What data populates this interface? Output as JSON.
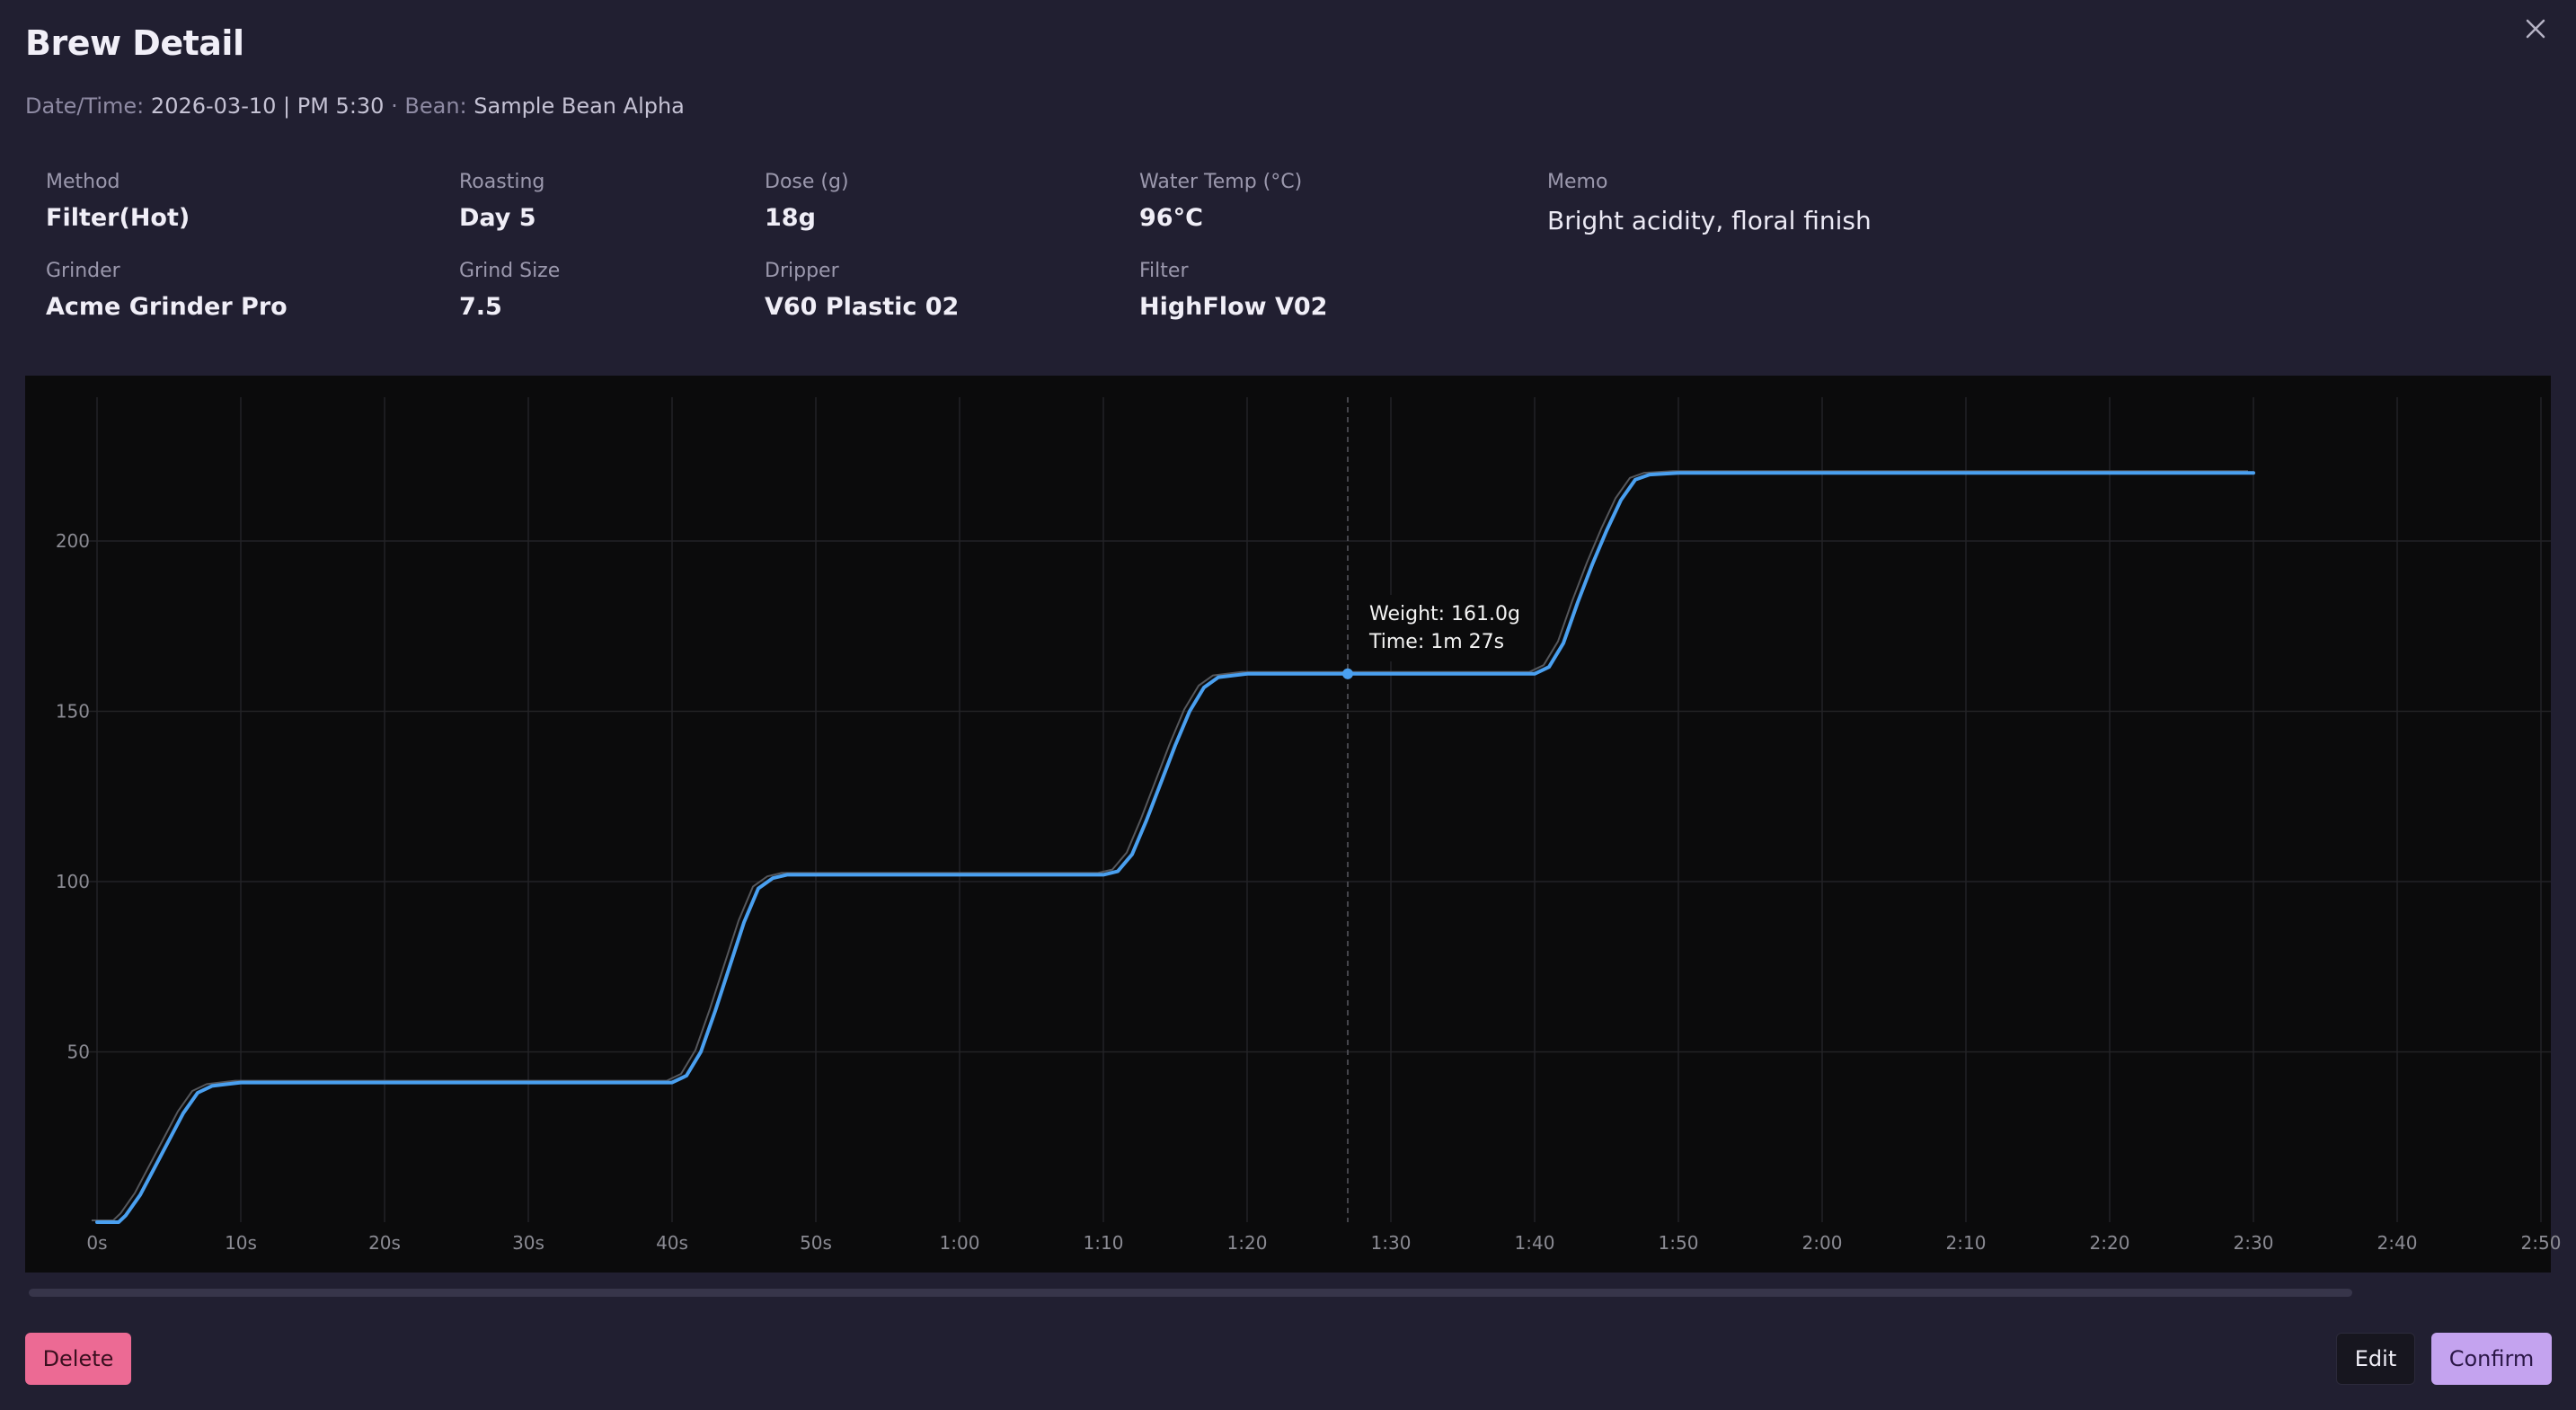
{
  "dialog": {
    "title": "Brew Detail",
    "subtitle": {
      "datetime_label": "Date/Time:",
      "datetime_value": "2026-03-10 | PM 5:30",
      "separator": "·",
      "bean_label": "Bean:",
      "bean_value": "Sample Bean Alpha"
    }
  },
  "details": {
    "method": {
      "label": "Method",
      "value": "Filter(Hot)"
    },
    "roasting": {
      "label": "Roasting",
      "value": "Day 5"
    },
    "dose": {
      "label": "Dose (g)",
      "value": "18g"
    },
    "water_temp": {
      "label": "Water Temp (°C)",
      "value": "96°C"
    },
    "memo": {
      "label": "Memo",
      "value": "Bright acidity, floral finish"
    },
    "grinder": {
      "label": "Grinder",
      "value": "Acme Grinder Pro"
    },
    "grind_size": {
      "label": "Grind Size",
      "value": "7.5"
    },
    "dripper": {
      "label": "Dripper",
      "value": "V60 Plastic 02"
    },
    "filter": {
      "label": "Filter",
      "value": "HighFlow V02"
    }
  },
  "tooltip": {
    "weight": "Weight: 161.0g",
    "time": "Time: 1m 27s"
  },
  "buttons": {
    "delete": "Delete",
    "edit": "Edit",
    "confirm": "Confirm"
  },
  "colors": {
    "background": "#211f31",
    "chart_background": "#0b0b0c",
    "line": "#4aa0f0",
    "delete": "#ec6a94",
    "confirm": "#c4a3ef"
  },
  "icons": {
    "close": "close-icon"
  },
  "chart_data": {
    "type": "line",
    "title": "",
    "xlabel": "",
    "ylabel": "",
    "xlim": [
      0,
      170
    ],
    "ylim": [
      0,
      240
    ],
    "grid": true,
    "x_ticks": [
      0,
      10,
      20,
      30,
      40,
      50,
      60,
      70,
      80,
      90,
      100,
      110,
      120,
      130,
      140,
      150,
      160,
      170
    ],
    "x_tick_labels": [
      "0s",
      "10s",
      "20s",
      "30s",
      "40s",
      "50s",
      "1:00",
      "1:10",
      "1:20",
      "1:30",
      "1:40",
      "1:50",
      "2:00",
      "2:10",
      "2:20",
      "2:30",
      "2:40",
      "2:50"
    ],
    "y_ticks": [
      50,
      100,
      150,
      200
    ],
    "y_tick_labels": [
      "50",
      "100",
      "150",
      "200"
    ],
    "hover": {
      "x": 87,
      "y": 161
    },
    "series": [
      {
        "x": [
          0,
          1.5,
          2,
          3,
          4,
          5,
          6,
          7,
          8,
          10,
          15,
          20,
          25,
          30,
          35,
          40,
          41,
          42,
          43,
          44,
          45,
          46,
          47,
          48,
          50,
          55,
          60,
          65,
          70,
          71,
          72,
          73,
          74,
          75,
          76,
          77,
          78,
          80,
          85,
          87,
          90,
          95,
          100,
          101,
          102,
          103,
          104,
          105,
          106,
          107,
          108,
          110,
          120,
          130,
          140,
          150
        ],
        "y": [
          0,
          0,
          2,
          8,
          16,
          24,
          32,
          38,
          40,
          41,
          41,
          41,
          41,
          41,
          41,
          41,
          43,
          50,
          62,
          75,
          88,
          98,
          101,
          102,
          102,
          102,
          102,
          102,
          102,
          103,
          108,
          118,
          129,
          140,
          150,
          157,
          160,
          161,
          161,
          161,
          161,
          161,
          161,
          163,
          170,
          182,
          193,
          203,
          212,
          218,
          219.5,
          220,
          220,
          220,
          220,
          220
        ]
      }
    ]
  }
}
